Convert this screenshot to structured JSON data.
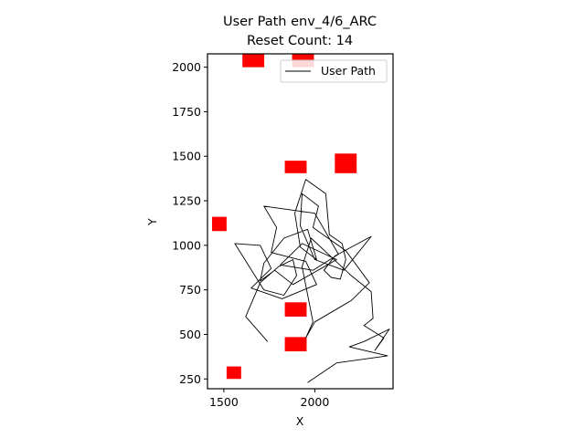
{
  "chart_data": {
    "type": "line",
    "title": "User Path env_4/6_ARC",
    "subtitle": "Reset Count: 14",
    "xlabel": "X",
    "ylabel": "Y",
    "xlim": [
      1410,
      2430
    ],
    "ylim": [
      195,
      2075
    ],
    "xticks": [
      1500,
      2000
    ],
    "yticks": [
      250,
      500,
      750,
      1000,
      1250,
      1500,
      1750,
      2000
    ],
    "legend": {
      "placement": "top-right",
      "entries": [
        "User Path"
      ]
    },
    "grid": false,
    "colors": {
      "path": "#000000",
      "obstacle": "#ff0000"
    },
    "series": [
      {
        "name": "User Path",
        "x": [
          1740,
          1620,
          1700,
          1800,
          1880,
          1900,
          1830,
          1720,
          1560,
          1700,
          1760,
          1650,
          1820,
          2010,
          1950,
          1760,
          1790,
          1720,
          2000,
          2130,
          1990,
          1810,
          1930,
          2120,
          1880,
          1780,
          1700,
          1720,
          1830,
          1960,
          2010,
          1920,
          1890,
          1950,
          2060,
          2080,
          2150,
          2170,
          2140,
          2090,
          2050,
          2110,
          2310,
          2160,
          2000,
          1920,
          1930,
          2020,
          1990,
          2170,
          2300,
          2200,
          2000,
          1950,
          1990,
          1930,
          1980,
          2200,
          2310,
          2320,
          2270,
          2380,
          2330,
          2410,
          2270,
          2190,
          2400,
          2120,
          1990,
          1960
        ],
        "y": [
          460,
          600,
          790,
          880,
          920,
          830,
          720,
          750,
          1010,
          1000,
          870,
          760,
          700,
          780,
          910,
          960,
          1100,
          1220,
          1180,
          950,
          860,
          890,
          1010,
          920,
          780,
          860,
          800,
          900,
          1040,
          1090,
          920,
          990,
          1180,
          1370,
          1290,
          1060,
          1010,
          920,
          810,
          820,
          860,
          940,
          1050,
          860,
          920,
          1110,
          1290,
          1220,
          1100,
          970,
          790,
          690,
          570,
          480,
          570,
          880,
          1040,
          830,
          740,
          590,
          550,
          480,
          410,
          530,
          460,
          430,
          380,
          340,
          250,
          230
        ]
      }
    ],
    "obstacles": [
      {
        "x": 1662,
        "y": 2040,
        "w": 120,
        "h": 80
      },
      {
        "x": 1935,
        "y": 2040,
        "w": 120,
        "h": 80
      },
      {
        "x": 2170,
        "y": 1460,
        "w": 120,
        "h": 110
      },
      {
        "x": 1895,
        "y": 1440,
        "w": 120,
        "h": 70
      },
      {
        "x": 1475,
        "y": 1120,
        "w": 80,
        "h": 80
      },
      {
        "x": 1895,
        "y": 640,
        "w": 120,
        "h": 80
      },
      {
        "x": 1895,
        "y": 445,
        "w": 120,
        "h": 80
      },
      {
        "x": 1555,
        "y": 285,
        "w": 80,
        "h": 70
      }
    ]
  }
}
